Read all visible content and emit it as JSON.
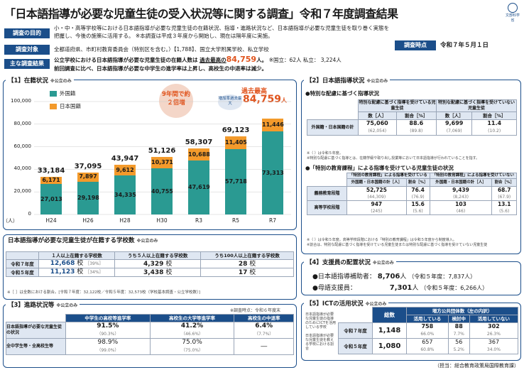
{
  "title": "「日本語指導が必要な児童生徒の受入状況等に関する調査」令和７年度調査結果",
  "logo": "文部科学省",
  "summary": {
    "purpose_label": "調査の目的",
    "purpose_text1": "小・中・高等学校等における日本語指導が必要な児童生徒の在籍状況、指導・進路状況など、日本語指導が必要な児童生徒を取り巻く実態を",
    "purpose_text2": "把握し、今後の施策に活用する。 ※本調査は平成３年度から開始し、現在は隔年度に実施。",
    "target_label": "調査対象",
    "target_text": "全都道府県、市町村教育委員会（特別区を含む。）【1,788】、国立大学附属学校、私立学校",
    "time_label": "調査時点",
    "time_value": "令和７年５月１日",
    "results_label": "主な調査結果",
    "results_text1a": "公立学校における日本語指導が必要な児童生徒の在籍人数は",
    "results_text1b": "過去最高の",
    "results_big": "84,759",
    "results_unit": "人。",
    "results_sub": "※国立：62人 私立： 3,224人",
    "results_text2": "前回調査に比べ、日本語指導が必要な中学生の進学率は上昇し、高校生の中退率は減少。"
  },
  "sec1": {
    "title": "【1】在籍状況",
    "note": "※公立のみ",
    "legend_foreign": "外国籍",
    "legend_japanese": "日本国籍",
    "unit": "（人）",
    "bubble": "9年間で約２倍増",
    "increase_label": "増加率過去最大",
    "record_label": "過去最高",
    "record_value": "84,759",
    "record_unit": "人"
  },
  "chart_data": {
    "type": "bar",
    "stacked": true,
    "categories": [
      "H24",
      "H26",
      "H28",
      "H30",
      "R3",
      "R5",
      "R7"
    ],
    "series": [
      {
        "name": "外国籍",
        "values": [
          27013,
          29198,
          34335,
          40755,
          47619,
          57718,
          73313
        ],
        "color": "#2a9a92"
      },
      {
        "name": "日本国籍",
        "values": [
          6171,
          7897,
          9612,
          10371,
          10688,
          11405,
          11446
        ],
        "color": "#f39a2b"
      }
    ],
    "totals": [
      33184,
      37095,
      43947,
      51126,
      58307,
      69123,
      84759
    ],
    "yticks": [
      "100,000",
      "80,000",
      "60,000",
      "40,000",
      "20,000",
      "0"
    ],
    "ylim": [
      0,
      100000
    ],
    "legend": "top-left",
    "series_labels": {
      "f": [
        "27,013",
        "29,198",
        "34,335",
        "40,755",
        "47,619",
        "57,718",
        "73,313"
      ],
      "j": [
        "6,171",
        "7,897",
        "9,612",
        "10,371",
        "10,688",
        "11,405",
        "11,446"
      ],
      "t": [
        "33,184",
        "37,095",
        "43,947",
        "51,126",
        "58,307",
        "69,123",
        ""
      ]
    }
  },
  "schools": {
    "title": "日本語指導が必要な児童生徒が在籍する学校数",
    "note": "※公立のみ",
    "h1": "１人以上在籍する学校数",
    "h2": "うち５人以上在籍する学校数",
    "h3": "うち100人以上在籍する学校数",
    "r1": {
      "y": "令和７年度",
      "v1": "12,668",
      "u1": "校",
      "p1": "［39%］",
      "v2": "4,329",
      "u2": "校",
      "v3": "28",
      "u3": "校"
    },
    "r2": {
      "y": "令和５年度",
      "v1": "11,123",
      "u1": "校",
      "p1": "［34%］",
      "v2": "3,438",
      "u2": "校",
      "v3": "17",
      "u3": "校"
    },
    "foot": "※［ ］は全数における割合。[令和７年度：32,122校／令和５年度：32,573校（学校基本調査・公立学校数）]"
  },
  "sec3": {
    "title": "【3】進路状況等",
    "note": "※公立のみ",
    "time": "※調査時点：令和６年度末",
    "h1": "中学生の高校等進学率",
    "h2": "高校生の大学等進学率",
    "h3": "高校生の中退率",
    "r1l": "日本語指導が必要な児童生徒の状況",
    "r1": [
      "91.5%",
      "41.2%",
      "6.4%"
    ],
    "r1s": [
      "（90.3%）",
      "（46.6%）",
      "（7.7%）"
    ],
    "r2l": "全中学生等・全高校生等",
    "r2": [
      "98.9%",
      "75.0%",
      "―"
    ],
    "r2s": [
      "（99.0%）",
      "（75.0%）",
      ""
    ]
  },
  "sec2": {
    "title": "【2】日本語指導状況",
    "note": "※公立のみ",
    "a_title": "●特別な配慮に基づく指導状況",
    "a_h1": "特別な配慮に基づく指導を受けている児童生徒",
    "a_h2": "特別な配慮に基づく指導を受けていない児童生徒",
    "a_n": "数［人］",
    "a_p": "割合［%］",
    "a_row": "外国籍・日本国籍の計",
    "a_vals": [
      "75,060",
      "88.6",
      "9,699",
      "11.4"
    ],
    "a_subs": [
      "(62,054)",
      "(89.8)",
      "(7,069)",
      "(10.2)"
    ],
    "a_f1": "※（ ）は令和５年度。",
    "a_f2": "※特別な配慮に基づく指導とは、在籍学級や取り出し授業等において日本語指導が行われていることを指す。",
    "b_title": "●「特別の教育課程」による指導を受けている児童生徒の状況",
    "b_h1": "「特別の教育課程」による指導を受けている",
    "b_h2": "「特別の教育課程」による指導を受けていない",
    "b_c1": "外国籍・日本国籍の計［人］",
    "b_c2": "割合［%］",
    "b_r1": "義務教育段階",
    "b_r2": "高等学校段階",
    "b_r1v": [
      "52,725",
      "76.4",
      "9,439",
      "68.7"
    ],
    "b_r1s": [
      "(44,309)",
      "(76.9)",
      "(8,243)",
      "(67.9)"
    ],
    "b_r2v": [
      "947",
      "15.6",
      "103",
      "13.1"
    ],
    "b_r2s": [
      "(245)",
      "(5.6)",
      "(46)",
      "(5.6)"
    ],
    "b_f1": "※（ ）は令和５年度。高等学校段階における「特別の教育課程」は令和５年度から制度導入。",
    "b_f2": "※割合は、特別な配慮に基づく指導を受けている児童生徒または特別な配慮に基づく指導を受けていない児童生徒"
  },
  "sec4": {
    "title": "【4】支援員の配置状況",
    "note": "※公立のみ",
    "l1": "●日本語指導補助者：",
    "v1": "8,706",
    "c1": "（令和５年度：7,837人）",
    "l2": "●母語支援員：",
    "v2": "7,301",
    "c2": "（令和５年度：6,266人）",
    "unit": "人"
  },
  "sec5": {
    "title": "【5】ICTの活用状況",
    "note": "※公立のみ",
    "desc1": "日本語指導が必要な児童生徒の指導のためにICTを活用している学校",
    "desc2": "日本語指導が必要な児童生徒を教える学校における割合",
    "h_count": "総数",
    "h_group": "増方公共団体数（左の内訳）",
    "h1": "活用している",
    "h2": "検討中",
    "h3": "活用していない",
    "r1y": "令和７年度",
    "r1t": "1,148",
    "r1": [
      "758",
      "88",
      "302"
    ],
    "r1p": [
      "66.0%",
      "7.7%",
      "26.3%"
    ],
    "r2y": "令和５年度",
    "r2t": "1,080",
    "r2": [
      "657",
      "56",
      "367"
    ],
    "r2p": [
      "60.8%",
      "5.2%",
      "34.0%"
    ]
  },
  "footer": "（担当：総合教育政策局国際教育課）"
}
